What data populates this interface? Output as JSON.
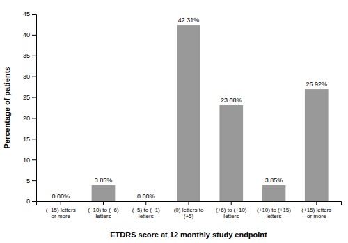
{
  "chart_data": {
    "type": "bar",
    "categories": [
      "(−15) letters\nor more",
      "(−10) to (−6)\nletters",
      "(−5) to (−1)\nletters",
      "(0) letters to\n(+5)",
      "(+6) to (+10)\nletters",
      "(+10) to (+15)\nletters",
      "(+15) letters\nor more"
    ],
    "values": [
      0.0,
      3.85,
      0.0,
      42.31,
      23.08,
      3.85,
      26.92
    ],
    "value_labels": [
      "0.00%",
      "3.85%",
      "0.00%",
      "42.31%",
      "23.08%",
      "3.85%",
      "26.92%"
    ],
    "color": "#999999",
    "xlabel": "ETDRS score at 12 monthly study endpoint",
    "ylabel": "Percentage of patients",
    "ylim": [
      0,
      45
    ],
    "yticks": [
      0,
      5,
      10,
      15,
      20,
      25,
      30,
      35,
      40,
      45
    ],
    "data_labels": true,
    "grid": false
  }
}
